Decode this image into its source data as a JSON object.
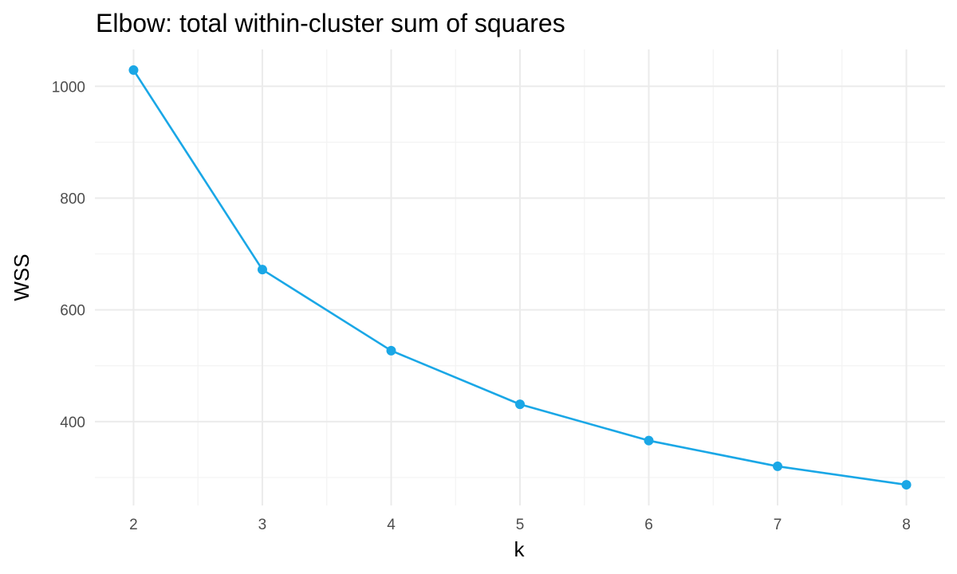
{
  "chart_data": {
    "type": "line",
    "title": "Elbow: total within-cluster sum of squares",
    "xlabel": "k",
    "ylabel": "WSS",
    "x": [
      2,
      3,
      4,
      5,
      6,
      7,
      8
    ],
    "series": [
      {
        "values": [
          1029,
          672,
          527,
          431,
          366,
          320,
          287
        ]
      }
    ],
    "x_ticks": [
      "2",
      "3",
      "4",
      "5",
      "6",
      "7",
      "8"
    ],
    "y_ticks": [
      400,
      600,
      800,
      1000
    ],
    "y_tick_labels": [
      "400",
      "600",
      "800",
      "1000"
    ],
    "xlim": [
      1.7,
      8.3
    ],
    "ylim": [
      250,
      1066
    ],
    "grid": true,
    "line_color": "#1aa7e6",
    "point_color": "#1aa7e6"
  }
}
